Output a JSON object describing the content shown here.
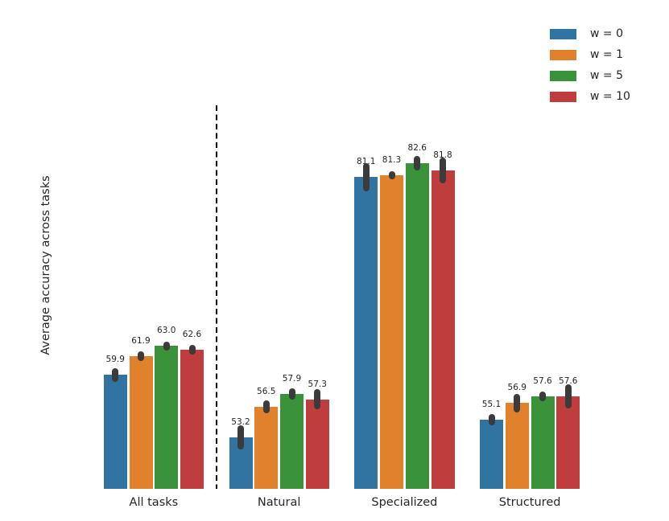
{
  "figure": {
    "background": "#ffffff",
    "text_color": "#262626",
    "errorbar_color": "#3b3b3b",
    "separator_color": "#000000"
  },
  "chart_data": {
    "type": "bar",
    "title": "",
    "xlabel": "",
    "ylabel": "Average accuracy across tasks",
    "categories": [
      "All tasks",
      "Natural",
      "Specialized",
      "Structured"
    ],
    "series": [
      {
        "name": "w = 0",
        "color": "#3274a1",
        "values": [
          59.9,
          53.2,
          81.1,
          55.1
        ],
        "errors": [
          0.7,
          1.3,
          1.5,
          0.6
        ]
      },
      {
        "name": "w = 1",
        "color": "#e1812c",
        "values": [
          61.9,
          56.5,
          81.3,
          56.9
        ],
        "errors": [
          0.5,
          0.7,
          0.4,
          1.0
        ]
      },
      {
        "name": "w = 5",
        "color": "#3a923a",
        "values": [
          63.0,
          57.9,
          82.6,
          57.6
        ],
        "errors": [
          0.5,
          0.6,
          0.8,
          0.55
        ]
      },
      {
        "name": "w = 10",
        "color": "#c03d3e",
        "values": [
          62.6,
          57.3,
          81.8,
          57.6
        ],
        "errors": [
          0.5,
          1.1,
          1.4,
          1.3
        ]
      }
    ],
    "ylim": [
      47.7,
      88.8
    ],
    "bar_value_labels": true,
    "value_label_format": "1-decimal",
    "grid": false,
    "legend_position": "upper-right",
    "separator": {
      "after_category_index": 0,
      "style": "dashed"
    }
  }
}
